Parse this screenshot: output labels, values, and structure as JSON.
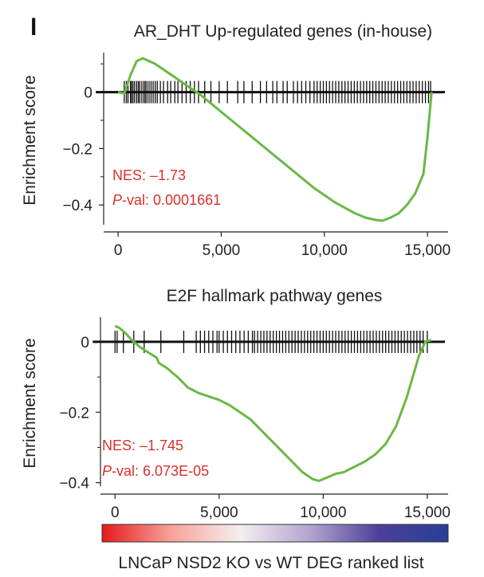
{
  "panel_label": "l",
  "colors": {
    "curve": "#6ab845",
    "hits": "#111111",
    "axis": "#222222",
    "stats": "#d9302a",
    "gradient": [
      "#e41a1c",
      "#f7a39a",
      "#f4eeee",
      "#b3a4cf",
      "#4d3f99",
      "#283f97"
    ]
  },
  "ranked_list_label": "LNCaP NSD2 KO vs WT DEG ranked list",
  "chart_data": [
    {
      "type": "line",
      "title": "AR_DHT Up-regulated genes (in-house)",
      "xlabel": "",
      "ylabel": "Enrichment score",
      "xlim": [
        -700,
        16000
      ],
      "ylim": [
        -0.47,
        0.14
      ],
      "xticks": [
        0,
        5000,
        10000,
        15000
      ],
      "xtick_labels": [
        "0",
        "5,000",
        "10,000",
        "15,000"
      ],
      "yticks": [
        0,
        -0.2,
        -0.4
      ],
      "ytick_labels": [
        "0",
        "−0.2",
        "−0.4"
      ],
      "stats": {
        "nes": "NES: –1.73",
        "pval_prefix": "P",
        "pval_rest": "-val: 0.0001661"
      },
      "series": [
        {
          "x": [
            0,
            300,
            600,
            900,
            1200,
            1500,
            1800,
            2200,
            2600,
            3000,
            3500,
            4000,
            4500,
            5000,
            5500,
            6000,
            6500,
            7000,
            7500,
            8000,
            8500,
            9000,
            9500,
            10000,
            10500,
            11000,
            11500,
            12000,
            12500,
            12800,
            13200,
            13600,
            14000,
            14400,
            14800,
            15000,
            15200
          ],
          "values": [
            0,
            -0.005,
            0.06,
            0.11,
            0.12,
            0.11,
            0.1,
            0.08,
            0.06,
            0.04,
            0.015,
            -0.01,
            -0.04,
            -0.07,
            -0.1,
            -0.13,
            -0.16,
            -0.19,
            -0.22,
            -0.25,
            -0.28,
            -0.31,
            -0.34,
            -0.365,
            -0.39,
            -0.41,
            -0.43,
            -0.445,
            -0.453,
            -0.456,
            -0.445,
            -0.43,
            -0.4,
            -0.36,
            -0.29,
            -0.16,
            0
          ]
        }
      ],
      "hits": [
        300,
        400,
        480,
        600,
        650,
        720,
        800,
        900,
        980,
        1050,
        1150,
        1250,
        1320,
        1400,
        1500,
        1600,
        1700,
        1800,
        1900,
        2050,
        2200,
        2400,
        2550,
        2750,
        2900,
        3100,
        3300,
        3500,
        3700,
        3900,
        4200,
        4500,
        4900,
        5300,
        5800,
        6100,
        6500,
        6900,
        7200,
        7500,
        7700,
        8000,
        8200,
        8500,
        8700,
        8900,
        9100,
        9300,
        9500,
        9650,
        9800,
        9950,
        10100,
        10250,
        10400,
        10550,
        10700,
        10850,
        11000,
        11150,
        11300,
        11450,
        11600,
        11750,
        11900,
        12050,
        12200,
        12350,
        12500,
        12650,
        12800,
        12950,
        13100,
        13250,
        13400,
        13550,
        13700,
        13850,
        14000,
        14150,
        14300,
        14450,
        14600,
        14750,
        14900,
        15050,
        15150
      ]
    },
    {
      "type": "line",
      "title": "E2F hallmark pathway genes",
      "xlabel": "LNCaP NSD2 KO vs WT DEG ranked list",
      "ylabel": "Enrichment score",
      "xlim": [
        -700,
        16000
      ],
      "ylim": [
        -0.41,
        0.07
      ],
      "xticks": [
        0,
        5000,
        10000,
        15000
      ],
      "xtick_labels": [
        "0",
        "5,000",
        "10,000",
        "15,000"
      ],
      "yticks": [
        0,
        -0.2,
        -0.4
      ],
      "ytick_labels": [
        "0",
        "−0.2",
        "−0.4"
      ],
      "stats": {
        "nes": "NES: –1.745",
        "pval_prefix": "P",
        "pval_rest": "-val: 6.073E-05"
      },
      "series": [
        {
          "x": [
            0,
            200,
            500,
            800,
            1200,
            1600,
            2000,
            2100,
            2500,
            3000,
            3500,
            4000,
            4500,
            5000,
            5500,
            6000,
            6500,
            7000,
            7500,
            8000,
            8500,
            9000,
            9500,
            9800,
            10200,
            10600,
            11000,
            11500,
            12000,
            12500,
            13000,
            13500,
            14000,
            14300,
            14600,
            14900,
            15200
          ],
          "values": [
            0.045,
            0.04,
            0.025,
            0.005,
            -0.015,
            -0.03,
            -0.045,
            -0.06,
            -0.075,
            -0.1,
            -0.13,
            -0.145,
            -0.155,
            -0.165,
            -0.18,
            -0.2,
            -0.22,
            -0.25,
            -0.28,
            -0.31,
            -0.34,
            -0.37,
            -0.39,
            -0.395,
            -0.385,
            -0.375,
            -0.37,
            -0.355,
            -0.34,
            -0.32,
            -0.29,
            -0.24,
            -0.16,
            -0.1,
            -0.04,
            0.0,
            0.005
          ]
        }
      ],
      "hits": [
        0,
        100,
        400,
        900,
        1400,
        2200,
        3300,
        3900,
        4100,
        4300,
        4500,
        4700,
        4900,
        5000,
        5200,
        5400,
        5600,
        5800,
        6000,
        6200,
        6400,
        6600,
        6700,
        6850,
        7000,
        7150,
        7300,
        7450,
        7600,
        7750,
        7900,
        8050,
        8200,
        8350,
        8500,
        8650,
        8800,
        8950,
        9100,
        9250,
        9400,
        9550,
        9700,
        9850,
        10000,
        10150,
        10300,
        10450,
        10600,
        10750,
        10900,
        11050,
        11200,
        11350,
        11500,
        11650,
        11800,
        11950,
        12100,
        12250,
        12400,
        12550,
        12700,
        12850,
        13000,
        13150,
        13300,
        13450,
        13600,
        13750,
        13900,
        14050,
        14200,
        14350,
        14500,
        14650,
        14800,
        15000
      ]
    }
  ]
}
